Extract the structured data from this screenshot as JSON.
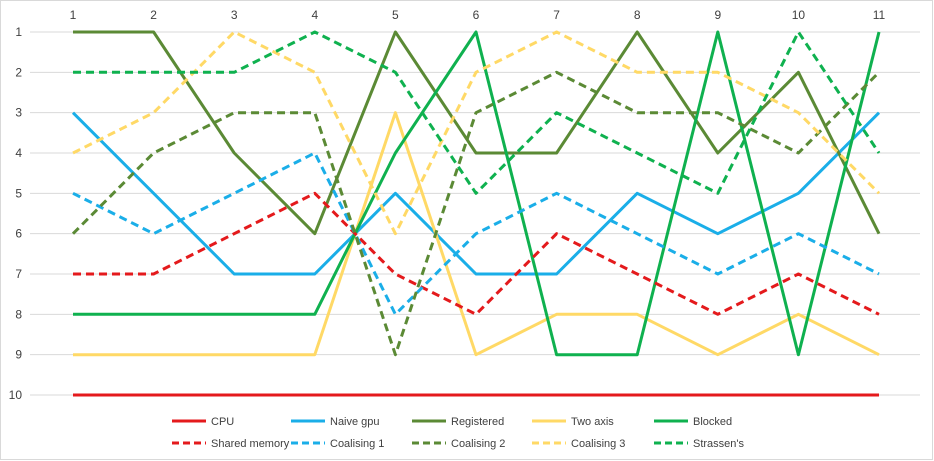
{
  "chart_data": {
    "type": "line",
    "title": "",
    "xlabel": "",
    "ylabel": "",
    "x": [
      1,
      2,
      3,
      4,
      5,
      6,
      7,
      8,
      9,
      10,
      11
    ],
    "x_tick_labels": [
      "1",
      "2",
      "3",
      "4",
      "5",
      "6",
      "7",
      "8",
      "9",
      "10",
      "11"
    ],
    "y_tick_labels": [
      "1",
      "2",
      "3",
      "4",
      "5",
      "6",
      "7",
      "8",
      "9",
      "10"
    ],
    "ylim": [
      1,
      10
    ],
    "y_reversed": true,
    "x_axis_position": "top",
    "grid": "horizontal",
    "legend_position": "bottom",
    "series": [
      {
        "name": "CPU",
        "color": "#e41a1c",
        "dash": false,
        "values": [
          10,
          10,
          10,
          10,
          10,
          10,
          10,
          10,
          10,
          10,
          10
        ]
      },
      {
        "name": "Naive gpu",
        "color": "#1aaee8",
        "dash": false,
        "values": [
          3,
          5,
          7,
          7,
          5,
          7,
          7,
          5,
          6,
          5,
          3
        ]
      },
      {
        "name": "Registered",
        "color": "#5b8a35",
        "dash": false,
        "values": [
          1,
          1,
          4,
          6,
          1,
          4,
          4,
          1,
          4,
          2,
          6
        ]
      },
      {
        "name": "Two axis",
        "color": "#ffd966",
        "dash": false,
        "values": [
          9,
          9,
          9,
          9,
          3,
          9,
          8,
          8,
          9,
          8,
          9
        ]
      },
      {
        "name": "Blocked",
        "color": "#0fb14f",
        "dash": false,
        "values": [
          8,
          8,
          8,
          8,
          4,
          1,
          9,
          9,
          1,
          9,
          1
        ]
      },
      {
        "name": "Shared memory",
        "color": "#e41a1c",
        "dash": true,
        "values": [
          7,
          7,
          6,
          5,
          7,
          8,
          6,
          7,
          8,
          7,
          8
        ]
      },
      {
        "name": "Coalising 1",
        "color": "#1aaee8",
        "dash": true,
        "values": [
          5,
          6,
          5,
          4,
          8,
          6,
          5,
          6,
          7,
          6,
          7
        ]
      },
      {
        "name": "Coalising 2",
        "color": "#5b8a35",
        "dash": true,
        "values": [
          6,
          4,
          3,
          3,
          9,
          3,
          2,
          3,
          3,
          4,
          2
        ]
      },
      {
        "name": "Coalising 3",
        "color": "#ffd966",
        "dash": true,
        "values": [
          4,
          3,
          1,
          2,
          6,
          2,
          1,
          2,
          2,
          3,
          5
        ]
      },
      {
        "name": "Strassen's",
        "color": "#0fb14f",
        "dash": true,
        "values": [
          2,
          2,
          2,
          1,
          2,
          5,
          3,
          4,
          5,
          1,
          4
        ]
      }
    ]
  }
}
